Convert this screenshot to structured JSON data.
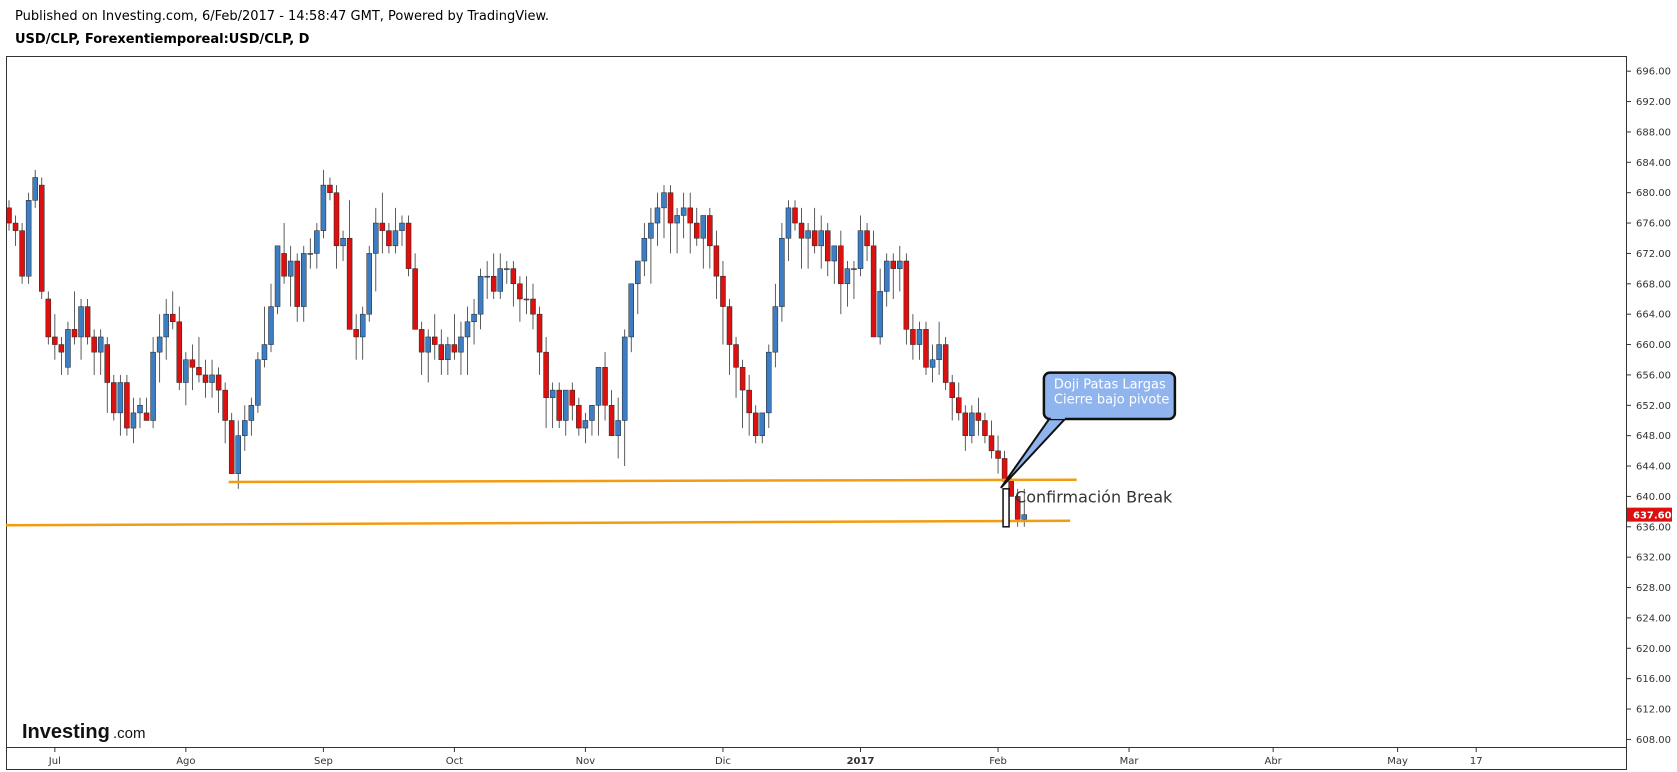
{
  "header": {
    "published": "Published on Investing.com, 6/Feb/2017 - 14:58:47 GMT, Powered by TradingView.",
    "symbol": "USD/CLP, Forexentiemporeal:USD/CLP, D"
  },
  "logo": {
    "main": "Investing",
    "suffix": ".com"
  },
  "colors": {
    "up": "#3d7dc4",
    "down": "#dd1010",
    "support": "#f39c12",
    "price_tag": "#dd1010",
    "callout_fill": "#8fb4ee",
    "callout_border": "#111111"
  },
  "chart_data": {
    "type": "candlestick",
    "title": "",
    "xlabel": "",
    "ylabel": "",
    "ylim": [
      607,
      698
    ],
    "y_ticks": [
      "608.00",
      "612.00",
      "616.00",
      "620.00",
      "624.00",
      "628.00",
      "632.00",
      "636.00",
      "640.00",
      "644.00",
      "648.00",
      "652.00",
      "656.00",
      "660.00",
      "664.00",
      "668.00",
      "672.00",
      "676.00",
      "680.00",
      "684.00",
      "688.00",
      "692.00",
      "696.00"
    ],
    "x_ticks": [
      {
        "label": "Jul",
        "bar": 7
      },
      {
        "label": "Ago",
        "bar": 27
      },
      {
        "label": "Sep",
        "bar": 48
      },
      {
        "label": "Oct",
        "bar": 68
      },
      {
        "label": "Nov",
        "bar": 88
      },
      {
        "label": "Dic",
        "bar": 109
      },
      {
        "label": "2017",
        "bar": 130
      },
      {
        "label": "Feb",
        "bar": 151
      },
      {
        "label": "Mar",
        "bar": 171
      },
      {
        "label": "Abr",
        "bar": 193
      },
      {
        "label": "May",
        "bar": 212
      },
      {
        "label": "17",
        "bar": 224
      }
    ],
    "x_range_bars": [
      0,
      228
    ],
    "last_price": "637.60",
    "candles": [
      [
        678,
        679,
        675,
        676
      ],
      [
        676,
        677,
        673,
        675
      ],
      [
        675,
        676,
        668,
        669
      ],
      [
        669,
        680,
        668,
        679
      ],
      [
        679,
        683,
        678,
        682
      ],
      [
        681,
        682,
        666,
        667
      ],
      [
        666,
        667,
        660,
        661
      ],
      [
        661,
        664,
        658,
        660
      ],
      [
        660,
        661,
        656,
        659
      ],
      [
        657,
        663,
        656,
        662
      ],
      [
        662,
        667,
        660,
        661
      ],
      [
        661,
        666,
        658,
        665
      ],
      [
        665,
        666,
        660,
        661
      ],
      [
        661,
        662,
        656,
        659
      ],
      [
        659,
        662,
        656,
        661
      ],
      [
        660,
        661,
        651,
        655
      ],
      [
        655,
        656,
        650,
        651
      ],
      [
        651,
        656,
        648,
        655
      ],
      [
        655,
        656,
        648,
        649
      ],
      [
        649,
        653,
        647,
        651
      ],
      [
        651,
        653,
        649,
        652
      ],
      [
        651,
        653,
        650,
        650
      ],
      [
        650,
        661,
        649,
        659
      ],
      [
        659,
        664,
        655,
        661
      ],
      [
        661,
        666,
        658,
        664
      ],
      [
        664,
        667,
        662,
        663
      ],
      [
        663,
        665,
        654,
        655
      ],
      [
        655,
        659,
        652,
        658
      ],
      [
        658,
        660,
        654,
        657
      ],
      [
        657,
        661,
        655,
        656
      ],
      [
        656,
        658,
        653,
        655
      ],
      [
        655,
        658,
        653,
        656
      ],
      [
        656,
        657,
        651,
        654
      ],
      [
        654,
        655,
        647,
        650
      ],
      [
        650,
        651,
        643,
        643
      ],
      [
        643,
        650,
        641,
        648
      ],
      [
        648,
        652,
        646,
        650
      ],
      [
        650,
        653,
        648,
        652
      ],
      [
        652,
        659,
        651,
        658
      ],
      [
        658,
        665,
        657,
        660
      ],
      [
        660,
        668,
        659,
        665
      ],
      [
        665,
        673,
        664,
        673
      ],
      [
        672,
        676,
        668,
        669
      ],
      [
        669,
        673,
        665,
        671
      ],
      [
        671,
        672,
        663,
        665
      ],
      [
        665,
        673,
        663,
        672
      ],
      [
        672,
        674,
        670,
        672
      ],
      [
        672,
        676,
        670,
        675
      ],
      [
        675,
        683,
        674,
        681
      ],
      [
        681,
        682,
        679,
        680
      ],
      [
        680,
        681,
        670,
        673
      ],
      [
        673,
        675,
        671,
        674
      ],
      [
        674,
        679,
        662,
        662
      ],
      [
        662,
        664,
        658,
        661
      ],
      [
        661,
        665,
        658,
        664
      ],
      [
        664,
        673,
        663,
        672
      ],
      [
        672,
        678,
        667,
        676
      ],
      [
        676,
        680,
        672,
        675
      ],
      [
        675,
        676,
        672,
        673
      ],
      [
        673,
        678,
        672,
        675
      ],
      [
        675,
        677,
        673,
        676
      ],
      [
        676,
        677,
        669,
        670
      ],
      [
        670,
        672,
        662,
        662
      ],
      [
        662,
        663,
        656,
        659
      ],
      [
        659,
        662,
        655,
        661
      ],
      [
        661,
        664,
        658,
        660
      ],
      [
        660,
        662,
        656,
        658
      ],
      [
        658,
        661,
        656,
        660
      ],
      [
        660,
        664,
        658,
        659
      ],
      [
        659,
        663,
        656,
        661
      ],
      [
        661,
        665,
        656,
        663
      ],
      [
        663,
        666,
        660,
        664
      ],
      [
        664,
        670,
        662,
        669
      ],
      [
        669,
        671,
        666,
        669
      ],
      [
        669,
        672,
        666,
        667
      ],
      [
        667,
        672,
        666,
        670
      ],
      [
        670,
        671,
        668,
        670
      ],
      [
        670,
        671,
        665,
        668
      ],
      [
        668,
        669,
        663,
        666
      ],
      [
        666,
        669,
        664,
        666
      ],
      [
        666,
        668,
        662,
        664
      ],
      [
        664,
        665,
        656,
        659
      ],
      [
        659,
        661,
        649,
        653
      ],
      [
        653,
        655,
        649,
        654
      ],
      [
        654,
        655,
        649,
        650
      ],
      [
        650,
        654,
        648,
        654
      ],
      [
        654,
        655,
        650,
        652
      ],
      [
        652,
        653,
        648,
        649
      ],
      [
        649,
        651,
        647,
        650
      ],
      [
        650,
        652,
        648,
        652
      ],
      [
        652,
        657,
        648,
        657
      ],
      [
        657,
        659,
        650,
        652
      ],
      [
        652,
        654,
        648,
        648
      ],
      [
        648,
        653,
        645,
        650
      ],
      [
        650,
        662,
        644,
        661
      ],
      [
        661,
        668,
        659,
        668
      ],
      [
        668,
        671,
        664,
        671
      ],
      [
        671,
        676,
        669,
        674
      ],
      [
        674,
        678,
        668,
        676
      ],
      [
        676,
        680,
        673,
        678
      ],
      [
        678,
        681,
        674,
        680
      ],
      [
        680,
        681,
        672,
        676
      ],
      [
        676,
        678,
        672,
        677
      ],
      [
        677,
        680,
        674,
        678
      ],
      [
        678,
        680,
        672,
        676
      ],
      [
        676,
        678,
        673,
        674
      ],
      [
        674,
        677,
        670,
        677
      ],
      [
        677,
        678,
        670,
        673
      ],
      [
        673,
        675,
        666,
        669
      ],
      [
        669,
        671,
        660,
        665
      ],
      [
        665,
        666,
        656,
        660
      ],
      [
        660,
        661,
        653,
        657
      ],
      [
        657,
        658,
        649,
        654
      ],
      [
        654,
        656,
        648,
        651
      ],
      [
        651,
        652,
        647,
        648
      ],
      [
        648,
        651,
        647,
        651
      ],
      [
        651,
        660,
        649,
        659
      ],
      [
        659,
        668,
        657,
        665
      ],
      [
        665,
        676,
        663,
        674
      ],
      [
        674,
        679,
        671,
        678
      ],
      [
        678,
        679,
        675,
        676
      ],
      [
        676,
        678,
        670,
        674
      ],
      [
        674,
        676,
        670,
        675
      ],
      [
        675,
        678,
        672,
        673
      ],
      [
        673,
        677,
        670,
        675
      ],
      [
        675,
        676,
        669,
        671
      ],
      [
        671,
        673,
        668,
        673
      ],
      [
        673,
        675,
        664,
        668
      ],
      [
        668,
        671,
        665,
        670
      ],
      [
        670,
        671,
        666,
        670
      ],
      [
        670,
        677,
        669,
        675
      ],
      [
        675,
        676,
        671,
        673
      ],
      [
        673,
        675,
        661,
        661
      ],
      [
        661,
        670,
        660,
        667
      ],
      [
        667,
        672,
        665,
        671
      ],
      [
        671,
        672,
        666,
        670
      ],
      [
        670,
        673,
        667,
        671
      ],
      [
        671,
        672,
        660,
        662
      ],
      [
        662,
        664,
        658,
        660
      ],
      [
        660,
        663,
        658,
        662
      ],
      [
        662,
        663,
        656,
        657
      ],
      [
        657,
        660,
        655,
        658
      ],
      [
        658,
        663,
        656,
        660
      ],
      [
        660,
        661,
        654,
        655
      ],
      [
        655,
        656,
        650,
        653
      ],
      [
        653,
        655,
        650,
        651
      ],
      [
        651,
        652,
        646,
        648
      ],
      [
        648,
        652,
        647,
        651
      ],
      [
        651,
        653,
        648,
        650
      ],
      [
        650,
        651,
        647,
        648
      ],
      [
        648,
        650,
        645,
        646
      ],
      [
        646,
        648,
        643,
        645
      ],
      [
        645,
        646,
        642,
        642
      ],
      [
        642,
        643,
        640,
        640
      ],
      [
        640,
        641,
        636,
        637
      ],
      [
        637,
        641,
        636,
        637.6
      ]
    ]
  },
  "annotations": {
    "supports": [
      {
        "from_bar": 34,
        "from_price": 641.9,
        "to_bar": 163,
        "to_price": 642.2
      },
      {
        "from_bar": 0,
        "from_price": 636.2,
        "to_bar": 162,
        "to_price": 636.8
      }
    ],
    "doji_box": {
      "bar": 151,
      "high": 641,
      "low": 636
    },
    "confirm_label": "Confirmación Break",
    "callout_lines": [
      "Doji Patas Largas",
      "Cierre bajo pivote"
    ],
    "callout_price_top": 656.3,
    "callout_price_bottom": 650.2,
    "callout_bar_left": 158,
    "callout_bar_right": 178,
    "callout_tip_bar": 151.5,
    "callout_tip_price": 641.2
  }
}
